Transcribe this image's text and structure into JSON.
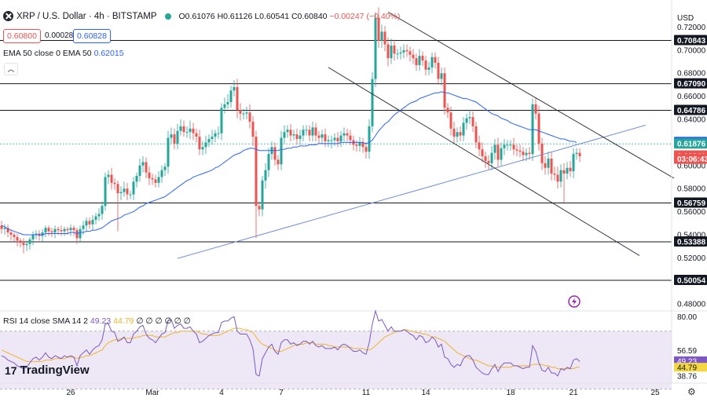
{
  "header": {
    "symbol": "XRP / U.S. Dollar · 4h · BITSTAMP",
    "ohlc_o": "O0.61076",
    "ohlc_h": "H0.61126",
    "ohlc_l": "L0.60541",
    "ohlc_c": "C0.60840",
    "ohlc_change": "−0.00247 (−0.40%)",
    "bid": "0.60800",
    "spread": "0.00028",
    "ask": "0.60828"
  },
  "indicators": {
    "ema_label": "EMA 50 close 0 EMA 50",
    "ema_value": "0.62015",
    "rsi_label": "RSI 14 close SMA 14 2",
    "rsi_value": "49.23",
    "rsi_sma": "44.79",
    "rsi_tail": "∅ ∅ ∅ ∅ ∅ ∅"
  },
  "currency": "USD",
  "brand": "TradingView",
  "colors": {
    "up": "#26a69a",
    "down": "#ef5350",
    "ema": "#2962ff",
    "rsi": "#7e57c2",
    "rsi_sma": "#f0b429",
    "rsi_band": "#ede7f6"
  },
  "chart_data": {
    "type": "candlestick",
    "symbol": "XRPUSD",
    "interval": "4h",
    "price_axis_ticks": [
      0.72,
      0.7,
      0.68,
      0.66,
      0.64,
      0.6,
      0.58,
      0.56,
      0.54,
      0.52,
      0.48
    ],
    "ylim": [
      0.474,
      0.738
    ],
    "x_tick_labels": [
      {
        "i": 22,
        "label": "26"
      },
      {
        "i": 48,
        "label": "Mar"
      },
      {
        "i": 70,
        "label": "4"
      },
      {
        "i": 89,
        "label": "7"
      },
      {
        "i": 116,
        "label": "11"
      },
      {
        "i": 135,
        "label": "14"
      },
      {
        "i": 162,
        "label": "18"
      },
      {
        "i": 182,
        "label": "21"
      },
      {
        "i": 208,
        "label": "25"
      }
    ],
    "horizontal_levels": [
      0.70843,
      0.6709,
      0.64786,
      0.61876,
      0.56759,
      0.53388,
      0.50054
    ],
    "price_tags": [
      {
        "label": "0.70843",
        "value": 0.70843,
        "style": "dark"
      },
      {
        "label": "0.67090",
        "value": 0.6709,
        "style": "dark"
      },
      {
        "label": "0.64786",
        "value": 0.64786,
        "style": "dark"
      },
      {
        "label": "0.62015",
        "value": 0.62015,
        "style": "ema"
      },
      {
        "label": "0.61876",
        "value": 0.61876,
        "style": "green"
      },
      {
        "label": "0.60840",
        "value": 0.6084,
        "style": "red"
      },
      {
        "label": "03:06:43",
        "value": 0.6056,
        "style": "red"
      },
      {
        "label": "0.56759",
        "value": 0.56759,
        "style": "dark"
      },
      {
        "label": "0.53388",
        "value": 0.53388,
        "style": "dark"
      },
      {
        "label": "0.50054",
        "value": 0.50054,
        "style": "dark"
      }
    ],
    "trendlines": [
      {
        "from": [
          56,
          0.5195
        ],
        "to": [
          205,
          0.635
        ]
      },
      {
        "from": [
          104,
          0.685
        ],
        "to": [
          203,
          0.522
        ]
      },
      {
        "from": [
          123,
          0.733
        ],
        "to": [
          214,
          0.589
        ]
      }
    ],
    "close": [
      0.545,
      0.546,
      0.542,
      0.54,
      0.538,
      0.535,
      0.533,
      0.531,
      0.532,
      0.536,
      0.54,
      0.541,
      0.539,
      0.542,
      0.546,
      0.543,
      0.542,
      0.545,
      0.544,
      0.543,
      0.545,
      0.544,
      0.546,
      0.544,
      0.537,
      0.545,
      0.548,
      0.552,
      0.549,
      0.553,
      0.556,
      0.558,
      0.565,
      0.59,
      0.592,
      0.585,
      0.584,
      0.576,
      0.577,
      0.58,
      0.575,
      0.575,
      0.586,
      0.591,
      0.6,
      0.603,
      0.594,
      0.589,
      0.588,
      0.585,
      0.59,
      0.596,
      0.599,
      0.624,
      0.627,
      0.619,
      0.63,
      0.634,
      0.629,
      0.629,
      0.632,
      0.628,
      0.625,
      0.614,
      0.616,
      0.62,
      0.623,
      0.625,
      0.628,
      0.628,
      0.65,
      0.653,
      0.655,
      0.665,
      0.668,
      0.648,
      0.645,
      0.645,
      0.646,
      0.638,
      0.625,
      0.565,
      0.562,
      0.587,
      0.596,
      0.61,
      0.616,
      0.605,
      0.601,
      0.624,
      0.629,
      0.631,
      0.626,
      0.627,
      0.623,
      0.626,
      0.631,
      0.631,
      0.626,
      0.633,
      0.626,
      0.624,
      0.627,
      0.621,
      0.622,
      0.622,
      0.624,
      0.621,
      0.626,
      0.628,
      0.626,
      0.622,
      0.618,
      0.617,
      0.62,
      0.616,
      0.612,
      0.634,
      0.675,
      0.728,
      0.708,
      0.716,
      0.705,
      0.693,
      0.704,
      0.697,
      0.697,
      0.698,
      0.7,
      0.699,
      0.696,
      0.693,
      0.687,
      0.695,
      0.691,
      0.683,
      0.685,
      0.694,
      0.689,
      0.675,
      0.68,
      0.65,
      0.646,
      0.632,
      0.625,
      0.629,
      0.626,
      0.637,
      0.641,
      0.642,
      0.634,
      0.62,
      0.614,
      0.608,
      0.604,
      0.602,
      0.611,
      0.618,
      0.605,
      0.615,
      0.618,
      0.618,
      0.618,
      0.614,
      0.613,
      0.612,
      0.609,
      0.611,
      0.61,
      0.653,
      0.645,
      0.619,
      0.602,
      0.598,
      0.606,
      0.593,
      0.592,
      0.586,
      0.596,
      0.593,
      0.598,
      0.595,
      0.61,
      0.611,
      0.608
    ],
    "high_offset": [
      0.004,
      0.003,
      0.003,
      0.002,
      0.002,
      0.003,
      0.002,
      0.004,
      0.003,
      0.002,
      0.003,
      0.003,
      0.003,
      0.003,
      0.002,
      0.002,
      0.003,
      0.003,
      0.002,
      0.004,
      0.002,
      0.002,
      0.003,
      0.002,
      0.002,
      0.003,
      0.004,
      0.003,
      0.003,
      0.004,
      0.003,
      0.005,
      0.004,
      0.004,
      0.004,
      0.006,
      0.004,
      0.003,
      0.005,
      0.006,
      0.005,
      0.003,
      0.004,
      0.003,
      0.006,
      0.005,
      0.004,
      0.005,
      0.004,
      0.004,
      0.005,
      0.004,
      0.003,
      0.006,
      0.006,
      0.005,
      0.006,
      0.006,
      0.005,
      0.005,
      0.007,
      0.005,
      0.004,
      0.006,
      0.005,
      0.006,
      0.004,
      0.006,
      0.003,
      0.006,
      0.004,
      0.006,
      0.007,
      0.004,
      0.006,
      0.007,
      0.006,
      0.004,
      0.005,
      0.007,
      0.005,
      0.005,
      0.004,
      0.004,
      0.006,
      0.005,
      0.005,
      0.004,
      0.004,
      0.006,
      0.006,
      0.004,
      0.005,
      0.004,
      0.005,
      0.005,
      0.004,
      0.004,
      0.004,
      0.005,
      0.004,
      0.004,
      0.004,
      0.005,
      0.004,
      0.004,
      0.004,
      0.005,
      0.004,
      0.005,
      0.004,
      0.005,
      0.004,
      0.004,
      0.005,
      0.004,
      0.004,
      0.006,
      0.006,
      0.005,
      0.009,
      0.006,
      0.005,
      0.006,
      0.006,
      0.005,
      0.004,
      0.005,
      0.005,
      0.005,
      0.004,
      0.005,
      0.004,
      0.006,
      0.004,
      0.004,
      0.005,
      0.004,
      0.004,
      0.005,
      0.005,
      0.005,
      0.004,
      0.005,
      0.006,
      0.004,
      0.005,
      0.005,
      0.004,
      0.006,
      0.005,
      0.004,
      0.006,
      0.006,
      0.004,
      0.005,
      0.006,
      0.005,
      0.006,
      0.005,
      0.005,
      0.004,
      0.004,
      0.006,
      0.004,
      0.005,
      0.004,
      0.004,
      0.005,
      0.005,
      0.006,
      0.007,
      0.005,
      0.006,
      0.006,
      0.006,
      0.006,
      0.007,
      0.005,
      0.006,
      0.005,
      0.006,
      0.005,
      0.004,
      0.004,
      0.004
    ],
    "low_offset": [
      0.004,
      0.005,
      0.004,
      0.005,
      0.004,
      0.005,
      0.004,
      0.007,
      0.005,
      0.005,
      0.005,
      0.004,
      0.004,
      0.005,
      0.004,
      0.004,
      0.004,
      0.005,
      0.004,
      0.004,
      0.004,
      0.004,
      0.005,
      0.005,
      0.005,
      0.004,
      0.005,
      0.005,
      0.004,
      0.005,
      0.004,
      0.004,
      0.005,
      0.004,
      0.006,
      0.006,
      0.005,
      0.033,
      0.006,
      0.004,
      0.005,
      0.004,
      0.005,
      0.005,
      0.005,
      0.006,
      0.005,
      0.006,
      0.005,
      0.004,
      0.004,
      0.005,
      0.005,
      0.006,
      0.005,
      0.005,
      0.005,
      0.004,
      0.004,
      0.005,
      0.006,
      0.006,
      0.005,
      0.005,
      0.005,
      0.006,
      0.004,
      0.005,
      0.005,
      0.005,
      0.006,
      0.005,
      0.004,
      0.005,
      0.005,
      0.007,
      0.006,
      0.005,
      0.005,
      0.006,
      0.008,
      0.028,
      0.006,
      0.006,
      0.007,
      0.006,
      0.005,
      0.005,
      0.005,
      0.005,
      0.005,
      0.005,
      0.005,
      0.004,
      0.005,
      0.005,
      0.005,
      0.005,
      0.005,
      0.005,
      0.005,
      0.005,
      0.005,
      0.005,
      0.005,
      0.007,
      0.005,
      0.005,
      0.005,
      0.005,
      0.005,
      0.004,
      0.005,
      0.005,
      0.005,
      0.005,
      0.006,
      0.006,
      0.005,
      0.007,
      0.006,
      0.006,
      0.006,
      0.007,
      0.005,
      0.006,
      0.005,
      0.005,
      0.005,
      0.005,
      0.006,
      0.005,
      0.005,
      0.005,
      0.005,
      0.005,
      0.005,
      0.005,
      0.005,
      0.005,
      0.006,
      0.006,
      0.005,
      0.006,
      0.006,
      0.005,
      0.005,
      0.005,
      0.006,
      0.005,
      0.005,
      0.005,
      0.006,
      0.005,
      0.006,
      0.006,
      0.006,
      0.006,
      0.006,
      0.005,
      0.006,
      0.005,
      0.005,
      0.005,
      0.005,
      0.005,
      0.005,
      0.005,
      0.005,
      0.006,
      0.005,
      0.006,
      0.006,
      0.006,
      0.006,
      0.006,
      0.005,
      0.006,
      0.005,
      0.025,
      0.005,
      0.005,
      0.006,
      0.005,
      0.005,
      0.005
    ],
    "ema50": [
      0.548,
      0.547,
      0.545,
      0.544,
      0.543,
      0.542,
      0.541,
      0.54,
      0.54,
      0.54,
      0.54,
      0.54,
      0.54,
      0.54,
      0.541,
      0.541,
      0.541,
      0.541,
      0.541,
      0.541,
      0.541,
      0.541,
      0.542,
      0.542,
      0.541,
      0.542,
      0.542,
      0.543,
      0.543,
      0.544,
      0.544,
      0.545,
      0.546,
      0.548,
      0.55,
      0.552,
      0.553,
      0.554,
      0.555,
      0.557,
      0.558,
      0.559,
      0.56,
      0.562,
      0.564,
      0.565,
      0.567,
      0.568,
      0.569,
      0.57,
      0.571,
      0.572,
      0.573,
      0.575,
      0.577,
      0.579,
      0.581,
      0.583,
      0.585,
      0.587,
      0.588,
      0.59,
      0.591,
      0.592,
      0.593,
      0.594,
      0.595,
      0.596,
      0.598,
      0.599,
      0.601,
      0.603,
      0.605,
      0.607,
      0.609,
      0.61,
      0.611,
      0.613,
      0.614,
      0.615,
      0.615,
      0.614,
      0.613,
      0.613,
      0.613,
      0.613,
      0.613,
      0.613,
      0.613,
      0.614,
      0.614,
      0.615,
      0.615,
      0.616,
      0.616,
      0.617,
      0.617,
      0.617,
      0.618,
      0.618,
      0.618,
      0.619,
      0.619,
      0.619,
      0.619,
      0.619,
      0.619,
      0.619,
      0.62,
      0.62,
      0.62,
      0.62,
      0.62,
      0.62,
      0.62,
      0.62,
      0.619,
      0.62,
      0.622,
      0.626,
      0.63,
      0.633,
      0.636,
      0.638,
      0.641,
      0.644,
      0.646,
      0.648,
      0.65,
      0.652,
      0.654,
      0.655,
      0.656,
      0.658,
      0.659,
      0.66,
      0.661,
      0.662,
      0.663,
      0.663,
      0.664,
      0.663,
      0.663,
      0.662,
      0.661,
      0.66,
      0.659,
      0.658,
      0.658,
      0.657,
      0.656,
      0.655,
      0.653,
      0.651,
      0.649,
      0.647,
      0.645,
      0.644,
      0.643,
      0.641,
      0.64,
      0.639,
      0.637,
      0.636,
      0.635,
      0.634,
      0.633,
      0.632,
      0.631,
      0.631,
      0.631,
      0.63,
      0.629,
      0.628,
      0.627,
      0.626,
      0.625,
      0.624,
      0.623,
      0.623,
      0.622,
      0.621,
      0.621,
      0.62
    ],
    "rsi": {
      "ylim": [
        34,
        84
      ],
      "ticks": [
        {
          "label": "80.00",
          "value": 80
        }
      ],
      "bands": [
        70,
        30
      ],
      "tags": [
        {
          "label": "56.59",
          "value": 56.59,
          "style": "plain"
        },
        {
          "label": "49.23",
          "value": 49.23,
          "style": "rsi"
        },
        {
          "label": "44.79",
          "value": 44.79,
          "style": "sma"
        },
        {
          "label": "38.76",
          "value": 38.76,
          "style": "plain"
        }
      ],
      "values": [
        53,
        52,
        50,
        49,
        48,
        46,
        45,
        44,
        45,
        48,
        51,
        52,
        50,
        52,
        55,
        52,
        51,
        53,
        52,
        51,
        53,
        52,
        53,
        52,
        46,
        53,
        55,
        57,
        54,
        57,
        59,
        60,
        64,
        75,
        75,
        70,
        69,
        63,
        64,
        66,
        62,
        62,
        68,
        70,
        73,
        74,
        68,
        65,
        64,
        62,
        65,
        68,
        69,
        77,
        78,
        72,
        74,
        75,
        72,
        72,
        73,
        70,
        68,
        62,
        63,
        65,
        67,
        68,
        69,
        69,
        76,
        77,
        77,
        79,
        80,
        70,
        68,
        68,
        68,
        64,
        58,
        40,
        39,
        51,
        55,
        59,
        61,
        56,
        54,
        62,
        64,
        64,
        61,
        62,
        60,
        61,
        63,
        63,
        61,
        63,
        60,
        59,
        60,
        58,
        58,
        58,
        59,
        57,
        60,
        61,
        60,
        58,
        56,
        56,
        57,
        55,
        54,
        62,
        75,
        84,
        77,
        78,
        74,
        70,
        73,
        70,
        70,
        70,
        71,
        70,
        68,
        67,
        64,
        67,
        66,
        62,
        63,
        66,
        64,
        59,
        61,
        52,
        51,
        47,
        45,
        47,
        46,
        51,
        53,
        53,
        50,
        45,
        43,
        41,
        40,
        40,
        44,
        47,
        42,
        46,
        48,
        48,
        48,
        46,
        46,
        45,
        44,
        45,
        45,
        60,
        56,
        48,
        43,
        42,
        45,
        41,
        41,
        39,
        44,
        43,
        45,
        44,
        50,
        51,
        49
      ],
      "sma": [
        57,
        56,
        55,
        54,
        53,
        52,
        51,
        50,
        49,
        49,
        49,
        49,
        49,
        49,
        50,
        50,
        50,
        51,
        51,
        51,
        51,
        52,
        52,
        52,
        51,
        52,
        52,
        53,
        53,
        54,
        55,
        56,
        57,
        60,
        62,
        63,
        64,
        64,
        65,
        65,
        65,
        65,
        65,
        66,
        66,
        67,
        67,
        67,
        67,
        66,
        66,
        66,
        66,
        67,
        68,
        69,
        69,
        70,
        70,
        70,
        70,
        70,
        70,
        69,
        68,
        68,
        67,
        67,
        67,
        67,
        68,
        69,
        70,
        71,
        72,
        72,
        72,
        71,
        71,
        70,
        69,
        66,
        63,
        61,
        60,
        59,
        58,
        57,
        56,
        56,
        57,
        58,
        59,
        60,
        61,
        61,
        61,
        62,
        62,
        62,
        61,
        61,
        61,
        61,
        60,
        60,
        59,
        59,
        59,
        59,
        59,
        59,
        58,
        58,
        58,
        58,
        57,
        57,
        58,
        60,
        62,
        64,
        66,
        67,
        68,
        69,
        70,
        70,
        71,
        71,
        70,
        70,
        69,
        69,
        68,
        68,
        67,
        66,
        66,
        65,
        64,
        63,
        61,
        59,
        57,
        55,
        54,
        53,
        52,
        51,
        50,
        50,
        49,
        48,
        47,
        46,
        46,
        45,
        45,
        45,
        45,
        45,
        45,
        46,
        46,
        46,
        46,
        46,
        46,
        47,
        47,
        47,
        47,
        46,
        46,
        45,
        45,
        44,
        44,
        44,
        44,
        44,
        44,
        45,
        45
      ]
    }
  }
}
